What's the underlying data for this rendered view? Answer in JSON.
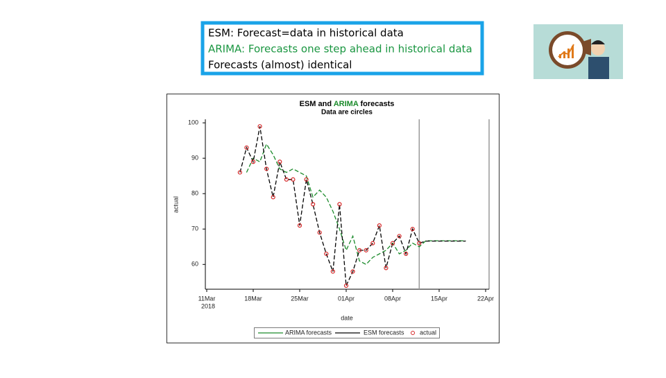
{
  "callout": {
    "lines": [
      "ESM: Forecast=data in historical data",
      "ARIMA: Forecasts one step ahead in historical data",
      "Forecasts (almost) identical"
    ],
    "colors": [
      "#000000",
      "#1a9641",
      "#000000"
    ]
  },
  "chart_data": {
    "type": "line",
    "title_parts": [
      "ESM and",
      "ARIMA",
      "forecasts"
    ],
    "subtitle": "Data are circles",
    "x_label": "date",
    "y_label": "actual",
    "x": [
      "2018-03-16",
      "2018-03-17",
      "2018-03-18",
      "2018-03-19",
      "2018-03-20",
      "2018-03-21",
      "2018-03-22",
      "2018-03-23",
      "2018-03-24",
      "2018-03-25",
      "2018-03-26",
      "2018-03-27",
      "2018-03-28",
      "2018-03-29",
      "2018-03-30",
      "2018-03-31",
      "2018-04-01",
      "2018-04-02",
      "2018-04-03",
      "2018-04-04",
      "2018-04-05",
      "2018-04-06",
      "2018-04-07",
      "2018-04-08",
      "2018-04-09",
      "2018-04-10",
      "2018-04-11",
      "2018-04-12",
      "2018-04-13",
      "2018-04-14",
      "2018-04-15",
      "2018-04-16",
      "2018-04-17",
      "2018-04-18",
      "2018-04-19"
    ],
    "series": [
      {
        "name": "ARIMA forecasts",
        "color": "#1a8a2a",
        "style": "line",
        "values": [
          null,
          86,
          90,
          89,
          94,
          91,
          87,
          86,
          87,
          86,
          85,
          79,
          81,
          79,
          75,
          70,
          64,
          68,
          61,
          60,
          62,
          63,
          64,
          66,
          63,
          64,
          66,
          65,
          66.7,
          66.7,
          66.7,
          66.7,
          66.7,
          66.7,
          66.7
        ]
      },
      {
        "name": "ESM forecasts",
        "color": "#000000",
        "style": "line",
        "values": [
          86,
          93,
          89,
          99,
          87,
          79,
          89,
          84,
          84,
          71,
          84,
          77,
          69,
          63,
          58,
          77,
          54,
          58,
          64,
          64,
          66,
          71,
          59,
          66,
          68,
          63,
          70,
          66,
          66.6,
          66.6,
          66.6,
          66.6,
          66.6,
          66.6,
          66.6
        ]
      },
      {
        "name": "actual",
        "color": "#d62728",
        "style": "marker",
        "values": [
          86,
          93,
          89,
          99,
          87,
          79,
          89,
          84,
          84,
          71,
          84,
          77,
          69,
          63,
          58,
          77,
          54,
          58,
          64,
          64,
          66,
          71,
          59,
          66,
          68,
          63,
          70,
          66,
          null,
          null,
          null,
          null,
          null,
          null,
          null
        ]
      }
    ],
    "xlim": [
      "2018-03-11",
      "2018-04-22"
    ],
    "xticks": [
      {
        "value": "2018-03-11",
        "label": "11Mar"
      },
      {
        "value": "2018-03-18",
        "label": "18Mar"
      },
      {
        "value": "2018-03-25",
        "label": "25Mar"
      },
      {
        "value": "2018-04-01",
        "label": "01Apr"
      },
      {
        "value": "2018-04-08",
        "label": "08Apr"
      },
      {
        "value": "2018-04-15",
        "label": "15Apr"
      },
      {
        "value": "2018-04-22",
        "label": "22Apr"
      }
    ],
    "x_year_label": "2018",
    "ylim": [
      53,
      101
    ],
    "yticks": [
      60,
      70,
      80,
      90,
      100
    ],
    "refline_x": "2018-04-12",
    "legend": "bottom"
  }
}
